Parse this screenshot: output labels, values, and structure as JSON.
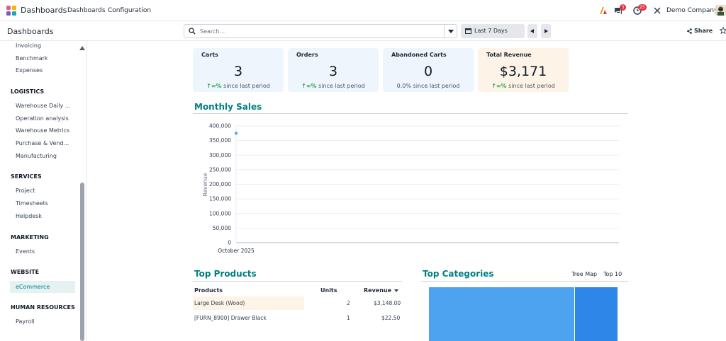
{
  "topbar": {
    "app_name": "Dashboards",
    "menus": [
      "Dashboards",
      "Configuration"
    ],
    "messages_count": "3",
    "activities_count": "25",
    "company": "Demo Company",
    "icons": [
      "apps-grid-icon",
      "ai-icon",
      "chat-icon",
      "activity-clock-icon",
      "tools-icon",
      "user-avatar-icon"
    ]
  },
  "control": {
    "title": "Dashboards",
    "search_placeholder": "Search...",
    "date_filter": "Last 7 Days",
    "share_label": "Share"
  },
  "sidebar": {
    "sections": [
      {
        "title": "",
        "items": [
          "Invoicing",
          "Benchmark",
          "Expenses"
        ]
      },
      {
        "title": "LOGISTICS",
        "items": [
          "Warehouse Daily ...",
          "Operation analysis",
          "Warehouse Metrics",
          "Purchase & Vend...",
          "Manufacturing"
        ]
      },
      {
        "title": "SERVICES",
        "items": [
          "Project",
          "Timesheets",
          "Helpdesk"
        ]
      },
      {
        "title": "MARKETING",
        "items": [
          "Events"
        ]
      },
      {
        "title": "WEBSITE",
        "items": [
          "eCommerce"
        ]
      },
      {
        "title": "HUMAN RESOURCES",
        "items": [
          "Payroll"
        ]
      }
    ],
    "active_item": "eCommerce"
  },
  "kpis": [
    {
      "title": "Carts",
      "value": "3",
      "trend_arrow": "↑∞%",
      "trend_text": "since last period",
      "trend": "up"
    },
    {
      "title": "Orders",
      "value": "3",
      "trend_arrow": "↑∞%",
      "trend_text": "since last period",
      "trend": "up"
    },
    {
      "title": "Abandoned Carts",
      "value": "0",
      "trend_arrow": "",
      "trend_text": "0.0% since last period",
      "trend": "flat"
    },
    {
      "title": "Total Revenue",
      "value": "$3,171",
      "trend_arrow": "↑∞%",
      "trend_text": "since last period",
      "trend": "up"
    }
  ],
  "monthly_sales": {
    "title": "Monthly Sales"
  },
  "chart_data": {
    "type": "scatter",
    "title": "Monthly Sales",
    "xlabel": "",
    "ylabel": "Revenue",
    "categories": [
      "October 2025"
    ],
    "series": [
      {
        "values": [
          375000
        ]
      }
    ],
    "ylim": [
      0,
      400000
    ],
    "yticks": [
      "400,000",
      "350,000",
      "300,000",
      "250,000",
      "200,000",
      "150,000",
      "100,000",
      "50,000",
      "0"
    ],
    "grid": true,
    "point_color": "#4a9fe8"
  },
  "top_products": {
    "title": "Top Products",
    "columns": [
      "Products",
      "Units",
      "Revenue"
    ],
    "rows": [
      {
        "product": "Large Desk (Wood)",
        "units": "2",
        "revenue": "$3,148.00"
      },
      {
        "product": "[FURN_8900] Drawer Black",
        "units": "1",
        "revenue": "$22.50"
      }
    ]
  },
  "top_categories": {
    "title": "Top Categories",
    "tabs": [
      "Tree Map",
      "Top 10"
    ],
    "treemap": [
      {
        "share": 0.77,
        "color": "#4da3f0"
      },
      {
        "share": 0.23,
        "color": "#2e86e8"
      }
    ]
  },
  "colors": {
    "accent": "#017e84",
    "up": "#28a745",
    "badge": "#dc3545"
  }
}
